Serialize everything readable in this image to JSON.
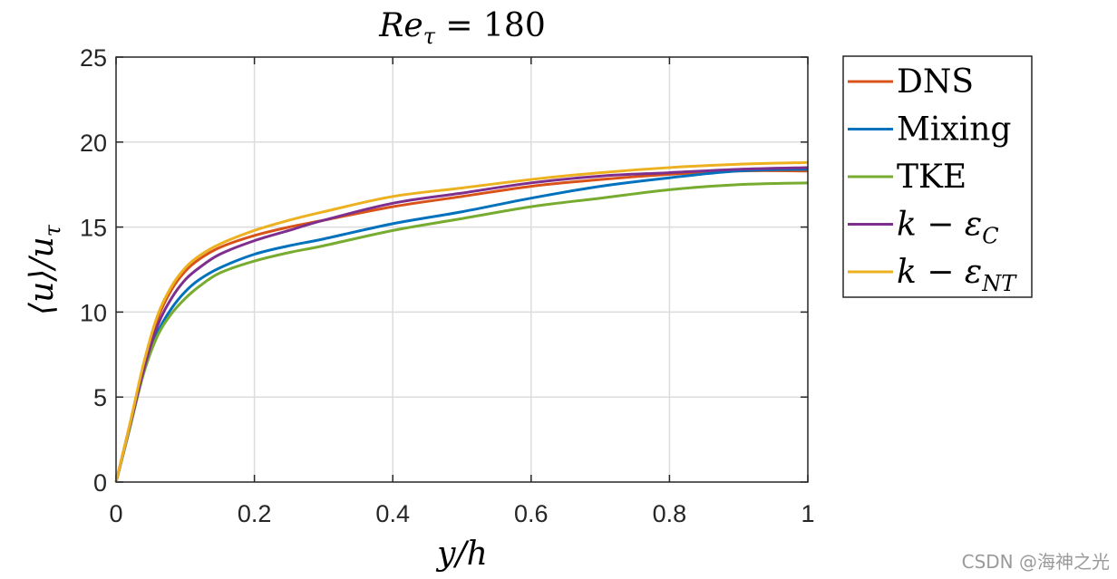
{
  "chart_data": {
    "type": "line",
    "title": "Re_τ = 180",
    "title_parts": {
      "main": "Re",
      "sub": "τ",
      "rest": " = 180"
    },
    "xlabel": "y/h",
    "ylabel": "⟨u⟩/u_τ",
    "ylabel_parts": {
      "main": "⟨u⟩/u",
      "sub": "τ"
    },
    "xlim": [
      0,
      1
    ],
    "ylim": [
      0,
      25
    ],
    "xticks": [
      0,
      0.2,
      0.4,
      0.6,
      0.8,
      1
    ],
    "xtick_labels": [
      "0",
      "0.2",
      "0.4",
      "0.6",
      "0.8",
      "1"
    ],
    "yticks": [
      0,
      5,
      10,
      15,
      20,
      25
    ],
    "ytick_labels": [
      "0",
      "5",
      "10",
      "15",
      "20",
      "25"
    ],
    "grid": true,
    "legend_position": "outside-top-right",
    "series": [
      {
        "name": "DNS",
        "legend_main": "DNS",
        "legend_sub": "",
        "color": "#D95319",
        "points": [
          [
            0,
            0
          ],
          [
            0.02,
            3.4
          ],
          [
            0.04,
            6.9
          ],
          [
            0.06,
            9.6
          ],
          [
            0.08,
            11.3
          ],
          [
            0.1,
            12.4
          ],
          [
            0.12,
            13.1
          ],
          [
            0.15,
            13.8
          ],
          [
            0.2,
            14.5
          ],
          [
            0.25,
            15.0
          ],
          [
            0.3,
            15.4
          ],
          [
            0.4,
            16.2
          ],
          [
            0.5,
            16.8
          ],
          [
            0.6,
            17.4
          ],
          [
            0.7,
            17.8
          ],
          [
            0.8,
            18.1
          ],
          [
            0.9,
            18.3
          ],
          [
            1.0,
            18.3
          ]
        ]
      },
      {
        "name": "Mixing",
        "legend_main": "Mixing",
        "legend_sub": "",
        "color": "#0072BD",
        "points": [
          [
            0,
            0
          ],
          [
            0.02,
            3.2
          ],
          [
            0.04,
            6.5
          ],
          [
            0.06,
            8.8
          ],
          [
            0.08,
            10.2
          ],
          [
            0.1,
            11.2
          ],
          [
            0.12,
            11.9
          ],
          [
            0.15,
            12.6
          ],
          [
            0.2,
            13.4
          ],
          [
            0.25,
            13.9
          ],
          [
            0.3,
            14.3
          ],
          [
            0.4,
            15.2
          ],
          [
            0.5,
            15.9
          ],
          [
            0.6,
            16.7
          ],
          [
            0.7,
            17.4
          ],
          [
            0.8,
            17.9
          ],
          [
            0.9,
            18.3
          ],
          [
            1.0,
            18.4
          ]
        ]
      },
      {
        "name": "TKE",
        "legend_main": "TKE",
        "legend_sub": "",
        "color": "#77AC30",
        "points": [
          [
            0,
            0
          ],
          [
            0.02,
            3.2
          ],
          [
            0.04,
            6.4
          ],
          [
            0.06,
            8.6
          ],
          [
            0.08,
            9.9
          ],
          [
            0.1,
            10.8
          ],
          [
            0.12,
            11.5
          ],
          [
            0.15,
            12.3
          ],
          [
            0.2,
            13.0
          ],
          [
            0.25,
            13.5
          ],
          [
            0.3,
            13.9
          ],
          [
            0.4,
            14.8
          ],
          [
            0.5,
            15.5
          ],
          [
            0.6,
            16.2
          ],
          [
            0.7,
            16.7
          ],
          [
            0.8,
            17.2
          ],
          [
            0.9,
            17.5
          ],
          [
            1.0,
            17.6
          ]
        ]
      },
      {
        "name": "k − ε_C",
        "legend_main": "k − ε",
        "legend_sub": "C",
        "color": "#7E2F8E",
        "points": [
          [
            0,
            0
          ],
          [
            0.02,
            3.3
          ],
          [
            0.04,
            6.6
          ],
          [
            0.06,
            9.2
          ],
          [
            0.08,
            10.8
          ],
          [
            0.1,
            11.9
          ],
          [
            0.12,
            12.6
          ],
          [
            0.15,
            13.4
          ],
          [
            0.2,
            14.2
          ],
          [
            0.25,
            14.8
          ],
          [
            0.3,
            15.4
          ],
          [
            0.4,
            16.4
          ],
          [
            0.5,
            17.0
          ],
          [
            0.6,
            17.6
          ],
          [
            0.7,
            18.0
          ],
          [
            0.8,
            18.2
          ],
          [
            0.9,
            18.4
          ],
          [
            1.0,
            18.5
          ]
        ]
      },
      {
        "name": "k − ε_NT",
        "legend_main": "k − ε",
        "legend_sub": "NT",
        "color": "#EDB120",
        "points": [
          [
            0,
            0
          ],
          [
            0.02,
            3.4
          ],
          [
            0.04,
            7.0
          ],
          [
            0.06,
            9.8
          ],
          [
            0.08,
            11.5
          ],
          [
            0.1,
            12.6
          ],
          [
            0.12,
            13.3
          ],
          [
            0.15,
            14.0
          ],
          [
            0.2,
            14.8
          ],
          [
            0.25,
            15.4
          ],
          [
            0.3,
            15.9
          ],
          [
            0.4,
            16.8
          ],
          [
            0.5,
            17.3
          ],
          [
            0.6,
            17.8
          ],
          [
            0.7,
            18.2
          ],
          [
            0.8,
            18.5
          ],
          [
            0.9,
            18.7
          ],
          [
            1.0,
            18.8
          ]
        ]
      }
    ]
  },
  "watermark": "CSDN @海神之光"
}
